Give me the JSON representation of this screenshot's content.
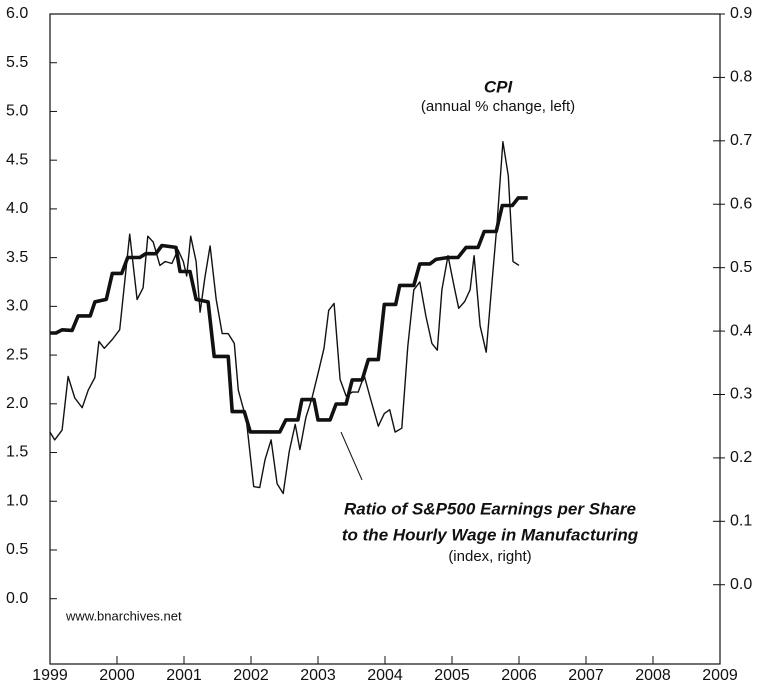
{
  "chart_data": {
    "type": "line",
    "annotations": [
      "CPI",
      "(annual % change, left)",
      "Ratio of S&P500 Earnings per Share",
      "to the Hourly Wage in Manufacturing",
      "(index, right)",
      "www.bnarchives.net"
    ],
    "xlim": [
      1999,
      2009
    ],
    "xticks": [
      1999,
      2000,
      2001,
      2002,
      2003,
      2004,
      2005,
      2006,
      2007,
      2008,
      2009
    ],
    "ylim": [
      -0.67,
      6.0
    ],
    "yticks": [
      {
        "value": 0,
        "label": "0.0"
      },
      0.5,
      {
        "value": 1,
        "label": "1.0"
      },
      1.5,
      {
        "value": 2,
        "label": "2.0"
      },
      2.5,
      {
        "value": 3,
        "label": "3.0"
      },
      3.5,
      {
        "value": 4,
        "label": "4.0"
      },
      4.5,
      {
        "value": 5,
        "label": "5.0"
      },
      5.5,
      {
        "value": 6,
        "label": "6.0"
      }
    ],
    "y2lim": [
      -0.125,
      0.9
    ],
    "y2ticks": [
      {
        "value": 0,
        "label": "0.0"
      },
      0.1,
      0.2,
      0.3,
      0.4,
      0.5,
      0.6,
      0.7,
      0.8,
      0.9
    ],
    "series": [
      {
        "name": "CPI",
        "color": "#111111",
        "width": 1.4,
        "x": [
          1999.0,
          1999.07,
          1999.18,
          1999.27,
          1999.37,
          1999.48,
          1999.57,
          1999.67,
          1999.73,
          1999.81,
          1999.93,
          2000.04,
          2000.19,
          2000.3,
          2000.39,
          2000.46,
          2000.54,
          2000.64,
          2000.72,
          2000.82,
          2000.91,
          2000.99,
          2001.04,
          2001.1,
          2001.18,
          2001.24,
          2001.31,
          2001.39,
          2001.48,
          2001.57,
          2001.66,
          2001.75,
          2001.81,
          2001.93,
          2002.04,
          2002.13,
          2002.21,
          2002.3,
          2002.39,
          2002.48,
          2002.57,
          2002.66,
          2002.73,
          2002.82,
          2002.91,
          2003.0,
          2003.09,
          2003.16,
          2003.24,
          2003.33,
          2003.42,
          2003.51,
          2003.6,
          2003.69,
          2003.78,
          2003.9,
          2003.99,
          2004.07,
          2004.15,
          2004.25,
          2004.34,
          2004.43,
          2004.52,
          2004.61,
          2004.7,
          2004.78,
          2004.85,
          2004.94,
          2005.03,
          2005.1,
          2005.19,
          2005.27,
          2005.33,
          2005.42,
          2005.51,
          2005.6,
          2005.67,
          2005.76,
          2005.84,
          2005.91,
          2006.0
        ],
        "values": [
          1.71,
          1.63,
          1.73,
          2.28,
          2.06,
          1.96,
          2.14,
          2.27,
          2.64,
          2.57,
          2.66,
          2.76,
          3.74,
          3.07,
          3.19,
          3.72,
          3.66,
          3.42,
          3.46,
          3.44,
          3.58,
          3.46,
          3.31,
          3.72,
          3.46,
          2.94,
          3.29,
          3.62,
          3.07,
          2.72,
          2.72,
          2.62,
          2.14,
          1.84,
          1.15,
          1.14,
          1.43,
          1.63,
          1.18,
          1.08,
          1.51,
          1.79,
          1.53,
          1.86,
          2.06,
          2.31,
          2.57,
          2.96,
          3.03,
          2.25,
          2.08,
          2.12,
          2.12,
          2.29,
          2.06,
          1.77,
          1.9,
          1.94,
          1.71,
          1.75,
          2.59,
          3.17,
          3.25,
          2.9,
          2.62,
          2.55,
          3.17,
          3.52,
          3.21,
          2.98,
          3.05,
          3.17,
          3.52,
          2.8,
          2.53,
          3.27,
          3.83,
          4.69,
          4.34,
          3.46,
          3.42
        ]
      },
      {
        "name": "Ratio of S&P500 Earnings per Share to the Hourly Wage in Manufacturing",
        "color": "#111111",
        "width": 3.6,
        "axis": "y2",
        "x": [
          1999.0,
          1999.09,
          1999.18,
          1999.33,
          1999.42,
          1999.6,
          1999.67,
          1999.84,
          1999.93,
          2000.07,
          2000.16,
          2000.34,
          2000.43,
          2000.58,
          2000.67,
          2000.88,
          2000.94,
          2001.09,
          2001.18,
          2001.36,
          2001.45,
          2001.66,
          2001.72,
          2001.9,
          2001.99,
          2002.43,
          2002.52,
          2002.7,
          2002.76,
          2002.94,
          2003.0,
          2003.18,
          2003.27,
          2003.42,
          2003.51,
          2003.66,
          2003.75,
          2003.9,
          2003.99,
          2004.16,
          2004.22,
          2004.43,
          2004.52,
          2004.67,
          2004.76,
          2004.94,
          2005.09,
          2005.21,
          2005.39,
          2005.48,
          2005.66,
          2005.75,
          2005.9,
          2005.99,
          2006.13
        ],
        "values": [
          0.397,
          0.397,
          0.402,
          0.401,
          0.424,
          0.424,
          0.446,
          0.45,
          0.491,
          0.491,
          0.516,
          0.516,
          0.522,
          0.522,
          0.535,
          0.532,
          0.494,
          0.494,
          0.45,
          0.446,
          0.36,
          0.36,
          0.273,
          0.273,
          0.241,
          0.241,
          0.26,
          0.26,
          0.292,
          0.292,
          0.26,
          0.26,
          0.285,
          0.285,
          0.323,
          0.323,
          0.355,
          0.355,
          0.442,
          0.442,
          0.472,
          0.472,
          0.506,
          0.506,
          0.513,
          0.516,
          0.516,
          0.532,
          0.532,
          0.557,
          0.557,
          0.598,
          0.598,
          0.61,
          0.61
        ]
      }
    ]
  }
}
